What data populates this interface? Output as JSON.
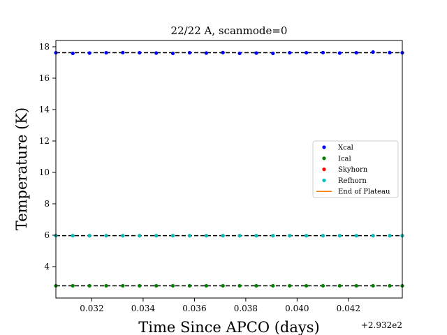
{
  "chart_data": {
    "type": "scatter",
    "title": "22/22 A, scanmode=0",
    "xlabel": "Time Since APCO (days)",
    "ylabel": "Temperature (K)",
    "x_offset_label": "+2.932e2",
    "xlim": [
      0.0306,
      0.0441
    ],
    "ylim": [
      2.0,
      18.4
    ],
    "xticks": [
      0.032,
      0.034,
      0.036,
      0.038,
      0.04,
      0.042
    ],
    "xtick_labels": [
      "0.032",
      "0.034",
      "0.036",
      "0.038",
      "0.040",
      "0.042"
    ],
    "yticks": [
      4,
      6,
      8,
      10,
      12,
      14,
      16,
      18
    ],
    "ytick_labels": [
      "4",
      "6",
      "8",
      "10",
      "12",
      "14",
      "16",
      "18"
    ],
    "x": [
      0.0306,
      0.03126,
      0.03191,
      0.03256,
      0.03321,
      0.03386,
      0.03451,
      0.03516,
      0.03581,
      0.03646,
      0.03711,
      0.03776,
      0.03841,
      0.03906,
      0.03971,
      0.04036,
      0.04101,
      0.04166,
      0.04231,
      0.04296,
      0.04361,
      0.0441
    ],
    "series": [
      {
        "name": "Xcal",
        "color": "#0000ff",
        "marker": "dot",
        "values": [
          17.62,
          17.58,
          17.6,
          17.62,
          17.63,
          17.62,
          17.6,
          17.58,
          17.62,
          17.6,
          17.63,
          17.58,
          17.6,
          17.58,
          17.62,
          17.62,
          17.63,
          17.6,
          17.62,
          17.66,
          17.63,
          17.62
        ]
      },
      {
        "name": "Ical",
        "color": "#008000",
        "marker": "dot",
        "values": [
          2.78,
          2.78,
          2.78,
          2.78,
          2.78,
          2.78,
          2.78,
          2.78,
          2.78,
          2.78,
          2.78,
          2.78,
          2.78,
          2.78,
          2.78,
          2.78,
          2.78,
          2.78,
          2.78,
          2.78,
          2.78,
          2.78
        ]
      },
      {
        "name": "Skyhorn",
        "color": "#ff0000",
        "marker": "dot",
        "values": [
          5.97,
          5.97,
          5.97,
          5.97,
          5.97,
          5.97,
          5.97,
          5.97,
          5.97,
          5.97,
          5.97,
          5.97,
          5.97,
          5.97,
          5.97,
          5.97,
          5.97,
          5.97,
          5.97,
          5.97,
          5.97,
          5.97
        ]
      },
      {
        "name": "Refhorn",
        "color": "#00bfbf",
        "marker": "dot",
        "values": [
          5.97,
          5.97,
          5.97,
          5.97,
          5.97,
          5.97,
          5.97,
          5.97,
          5.97,
          5.97,
          5.97,
          5.97,
          5.97,
          5.97,
          5.97,
          5.97,
          5.97,
          5.97,
          5.97,
          5.97,
          5.97,
          5.97
        ]
      }
    ],
    "plateau_lines": [
      17.62,
      5.97,
      2.78
    ],
    "plateau_line_color": "#000000",
    "end_of_plateau": {
      "name": "End of Plateau",
      "color": "#ff7f0e"
    },
    "legend": {
      "placement": "center-right",
      "entries": [
        "Xcal",
        "Ical",
        "Skyhorn",
        "Refhorn",
        "End of Plateau"
      ]
    },
    "grid": false
  }
}
